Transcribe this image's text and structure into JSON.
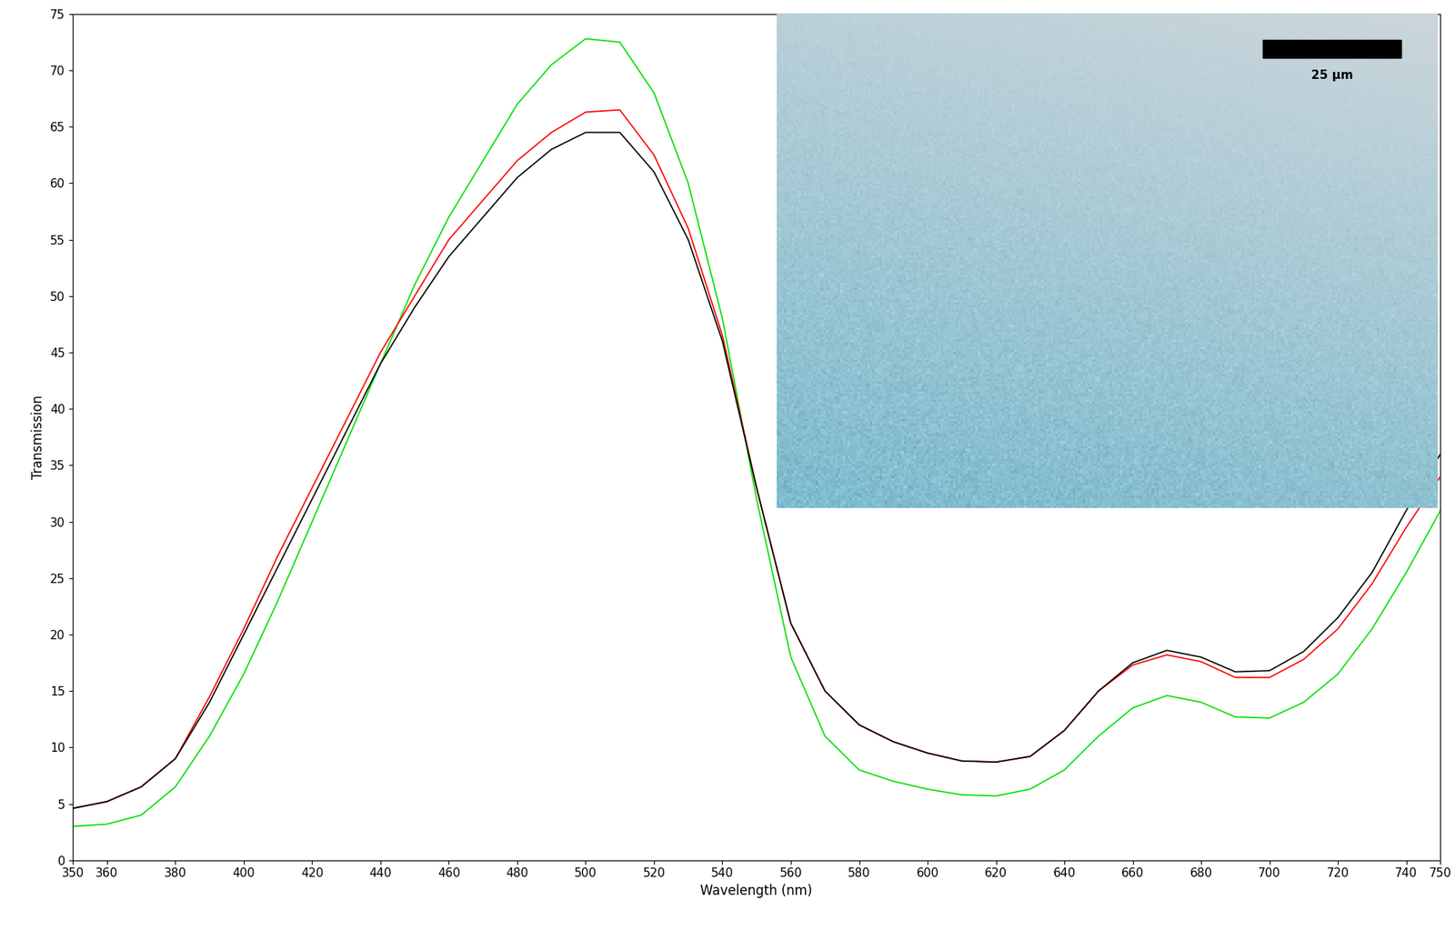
{
  "chart_data": {
    "type": "line",
    "x_label": "Wavelength (nm)",
    "y_label": "Transmission",
    "annotation": "25 µm",
    "x": [
      350,
      360,
      370,
      380,
      390,
      400,
      410,
      420,
      430,
      440,
      450,
      460,
      470,
      480,
      490,
      500,
      510,
      520,
      530,
      540,
      550,
      560,
      570,
      580,
      590,
      600,
      610,
      620,
      630,
      640,
      650,
      660,
      670,
      680,
      690,
      700,
      710,
      720,
      730,
      740,
      750
    ],
    "series": [
      {
        "color": "#00e000",
        "values": [
          3,
          3.2,
          4,
          6.5,
          11,
          16.5,
          23,
          30,
          37,
          44,
          51,
          57,
          62,
          67,
          70.5,
          72.8,
          72.5,
          68,
          60,
          48,
          32,
          18,
          11,
          8,
          7,
          6.3,
          5.8,
          5.7,
          6.3,
          8,
          11,
          13.5,
          14.6,
          14,
          12.7,
          12.6,
          14,
          16.5,
          20.5,
          25.5,
          31
        ]
      },
      {
        "color": "#ff0000",
        "values": [
          4.6,
          5.2,
          6.5,
          9,
          14.5,
          20.5,
          27,
          33,
          39,
          45,
          50,
          55,
          58.5,
          62,
          64.5,
          66.3,
          66.5,
          62.5,
          56,
          46.5,
          33,
          21,
          15,
          12,
          10.5,
          9.5,
          8.8,
          8.7,
          9.2,
          11.5,
          15,
          17.3,
          18.2,
          17.6,
          16.2,
          16.2,
          17.8,
          20.5,
          24.5,
          29.5,
          34
        ]
      },
      {
        "color": "#000000",
        "values": [
          4.6,
          5.2,
          6.5,
          9,
          14,
          20,
          26,
          32,
          38,
          44,
          49,
          53.5,
          57,
          60.5,
          63,
          64.5,
          64.5,
          61,
          55,
          46,
          33,
          21,
          15,
          12,
          10.5,
          9.5,
          8.8,
          8.7,
          9.2,
          11.5,
          15,
          17.5,
          18.6,
          18,
          16.7,
          16.8,
          18.5,
          21.5,
          25.5,
          31,
          36
        ]
      }
    ],
    "xlim": [
      350,
      750
    ],
    "ylim": [
      0,
      75
    ],
    "xticks": [
      350,
      360,
      380,
      400,
      420,
      440,
      460,
      480,
      500,
      520,
      540,
      560,
      580,
      600,
      620,
      640,
      660,
      680,
      700,
      720,
      740,
      750
    ],
    "yticks": [
      0,
      5,
      10,
      15,
      20,
      25,
      30,
      35,
      40,
      45,
      50,
      55,
      60,
      65,
      70,
      75
    ],
    "grid": false
  }
}
